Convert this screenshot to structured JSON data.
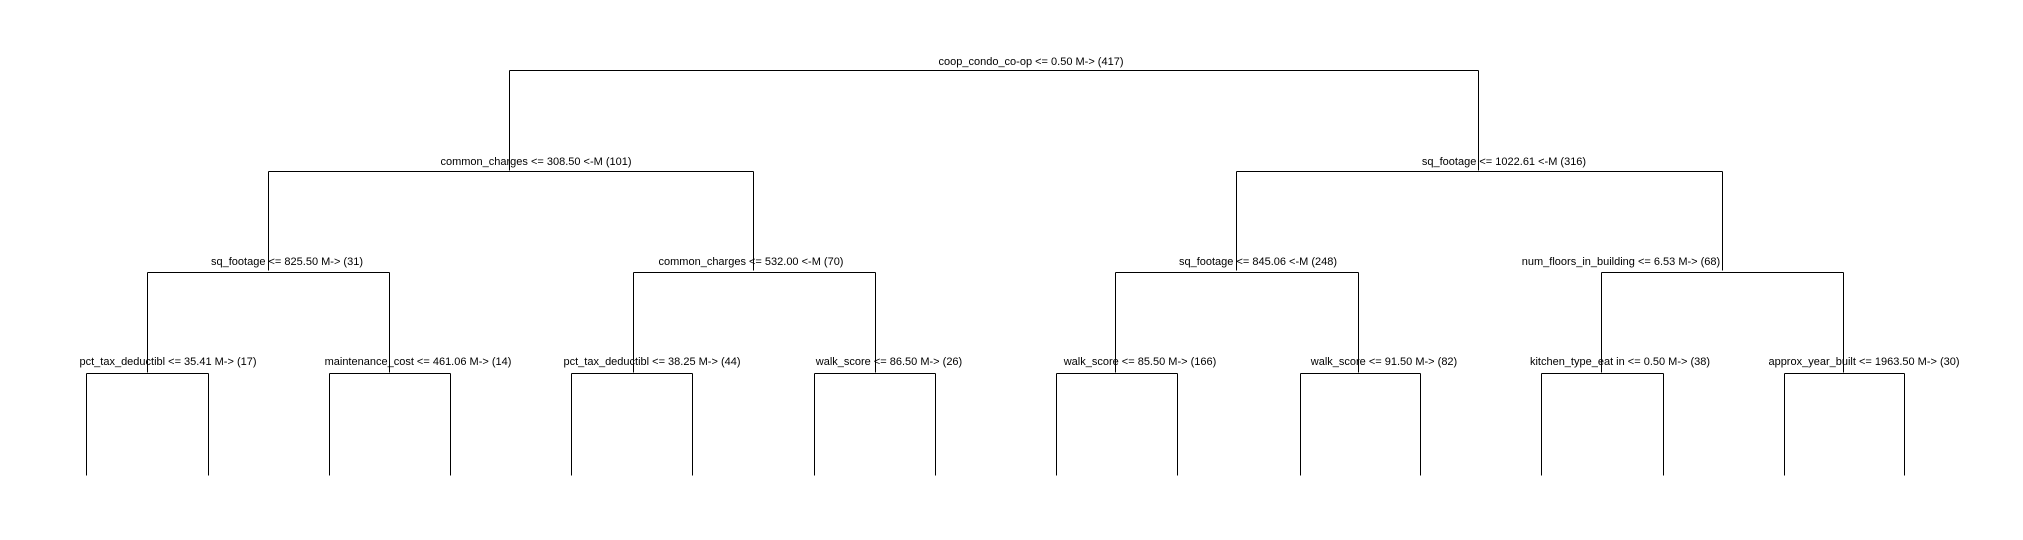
{
  "tree": {
    "nodes": [
      {
        "id": "n1",
        "label": "coop_condo_co-op <= 0.50 M-> (417)"
      },
      {
        "id": "n2",
        "label": "common_charges <= 308.50 <-M (101)"
      },
      {
        "id": "n3",
        "label": "sq_footage <= 1022.61 <-M (316)"
      },
      {
        "id": "n4",
        "label": "sq_footage <= 825.50 M-> (31)"
      },
      {
        "id": "n5",
        "label": "common_charges <= 532.00 <-M (70)"
      },
      {
        "id": "n6",
        "label": "sq_footage <= 845.06 <-M (248)"
      },
      {
        "id": "n7",
        "label": "num_floors_in_building <= 6.53 M-> (68)"
      },
      {
        "id": "n8",
        "label": "pct_tax_deductibl <= 35.41 M-> (17)"
      },
      {
        "id": "n9",
        "label": "maintenance_cost <= 461.06 M-> (14)"
      },
      {
        "id": "n10",
        "label": "pct_tax_deductibl <= 38.25 M-> (44)"
      },
      {
        "id": "n11",
        "label": "walk_score <= 86.50 M-> (26)"
      },
      {
        "id": "n12",
        "label": "walk_score <= 85.50 M-> (166)"
      },
      {
        "id": "n13",
        "label": "walk_score <= 91.50 M-> (82)"
      },
      {
        "id": "n14",
        "label": "kitchen_type_eat in <= 0.50 M-> (38)"
      },
      {
        "id": "n15",
        "label": "approx_year_built <= 1963.50 M-> (30)"
      }
    ]
  }
}
